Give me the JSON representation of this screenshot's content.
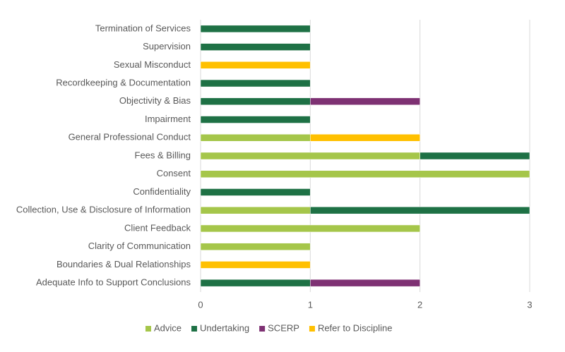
{
  "chart_data": {
    "type": "stacked-bar-horizontal",
    "categories": [
      "Termination of Services",
      "Supervision",
      "Sexual Misconduct",
      "Recordkeeping & Documentation",
      "Objectivity & Bias",
      "Impairment",
      "General Professional Conduct",
      "Fees & Billing",
      "Consent",
      "Confidentiality",
      "Collection, Use & Disclosure of Information",
      "Client Feedback",
      "Clarity of Communication",
      "Boundaries & Dual Relationships",
      "Adequate Info to Support Conclusions"
    ],
    "series": [
      {
        "name": "Advice",
        "color": "#a5c64a",
        "values": [
          0,
          0,
          0,
          0,
          0,
          0,
          1,
          2,
          3,
          0,
          1,
          2,
          1,
          0,
          0
        ]
      },
      {
        "name": "Undertaking",
        "color": "#1e7145",
        "values": [
          1,
          1,
          0,
          1,
          1,
          1,
          0,
          1,
          0,
          1,
          2,
          0,
          0,
          0,
          1
        ]
      },
      {
        "name": "SCERP",
        "color": "#7e3173",
        "values": [
          0,
          0,
          0,
          0,
          1,
          0,
          0,
          0,
          0,
          0,
          0,
          0,
          0,
          0,
          1
        ]
      },
      {
        "name": "Refer to Discipline",
        "color": "#ffc000",
        "values": [
          0,
          0,
          1,
          0,
          0,
          0,
          1,
          0,
          0,
          0,
          0,
          0,
          0,
          1,
          0
        ]
      }
    ],
    "xlim": [
      0,
      3
    ],
    "xticks": [
      0,
      1,
      2,
      3
    ],
    "grid": true,
    "legend": "bottom"
  }
}
